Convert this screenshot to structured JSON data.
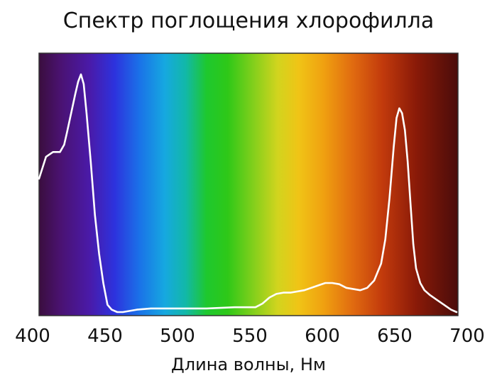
{
  "chart_data": {
    "type": "line",
    "title": "Спектр поглощения хлорофилла",
    "xlabel": "Длина волны, Нм",
    "ylabel": "",
    "xlim": [
      400,
      700
    ],
    "ylim": [
      0,
      100
    ],
    "x_ticks": [
      "400",
      "450",
      "500",
      "550",
      "600",
      "650",
      "700"
    ],
    "grid": false,
    "background": "visible light spectrum gradient",
    "series": [
      {
        "color": "#ffffff",
        "x": [
          400,
          405,
          410,
          415,
          418,
          420,
          423,
          426,
          428,
          430,
          432,
          434,
          437,
          440,
          443,
          446,
          449,
          452,
          456,
          460,
          470,
          480,
          500,
          520,
          540,
          555,
          560,
          565,
          570,
          575,
          580,
          590,
          600,
          605,
          610,
          615,
          620,
          630,
          635,
          640,
          645,
          648,
          651,
          654,
          656,
          658,
          660,
          662,
          664,
          666,
          668,
          670,
          673,
          676,
          680,
          685,
          690,
          695,
          699
        ],
        "y": [
          55,
          64,
          66,
          66,
          69,
          74,
          82,
          90,
          95,
          98,
          94,
          82,
          62,
          40,
          24,
          12,
          3,
          1,
          0,
          0,
          1,
          1.5,
          1.5,
          1.5,
          2,
          2,
          3.5,
          6,
          7.5,
          8,
          8,
          9,
          11,
          12,
          12,
          11.5,
          10,
          9,
          10,
          13,
          20,
          30,
          47,
          68,
          80,
          84,
          82,
          75,
          62,
          45,
          28,
          18,
          12,
          9,
          7,
          5,
          3,
          1,
          0
        ]
      }
    ]
  }
}
